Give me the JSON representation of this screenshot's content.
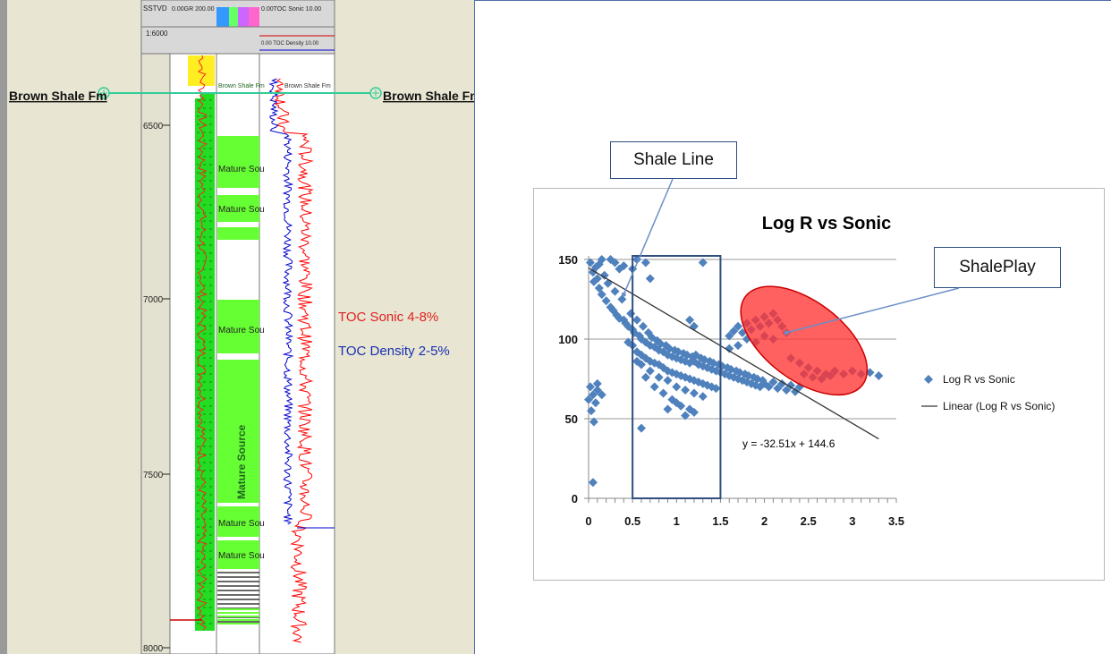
{
  "colors": {
    "log_panel_bg": "#e8e6d2",
    "lithology_green": "#22dd22",
    "source_green": "#66ff33",
    "shale_marker": "#33cc99",
    "scatter_blue": "#4f81bd",
    "sonic_red": "#ff0000",
    "density_blue": "#0000cc",
    "ellipse_red": "#ff3333",
    "frame_blue": "#4f6fa8"
  },
  "log_panel": {
    "header": {
      "depth_track": "SSTVD",
      "depth_scale": "1:6000",
      "gr_track": "0.00GR 200.00",
      "toc_sonic": "0.00TOC Sonic 10.00",
      "toc_density": "0.00 TOC Density 10.00"
    },
    "formation_top": "Brown Shale Fm",
    "depth_labels": [
      "6500",
      "7000",
      "7500",
      "8000"
    ],
    "source_label_short": "Mature Sou",
    "source_label_long": "Mature Source",
    "mini_labels": {
      "formation_track": "Brown Shale Fm",
      "toc_track": "Brown Shale Fm"
    },
    "legend": {
      "toc_sonic": "TOC Sonic 4-8%",
      "toc_density": "TOC Density 2-5%"
    }
  },
  "chart_data": {
    "type": "scatter",
    "title": "Log R vs Sonic",
    "xlabel": "",
    "ylabel": "",
    "xlim": [
      0,
      3.5
    ],
    "ylim": [
      0,
      150
    ],
    "x_ticks": [
      "0",
      "0.5",
      "1",
      "1.5",
      "2",
      "2.5",
      "3",
      "3.5"
    ],
    "y_ticks": [
      "0",
      "50",
      "100",
      "150"
    ],
    "grid": "horizontal",
    "legend_position": "right",
    "series": [
      {
        "name": "Log R vs Sonic",
        "type": "scatter",
        "color": "#4f81bd"
      },
      {
        "name": "Linear (Log R vs Sonic)",
        "type": "line",
        "color": "#000000"
      }
    ],
    "trendline": {
      "slope": -32.51,
      "intercept": 144.6,
      "x_range": [
        0,
        3.3
      ]
    },
    "equation_label": "y = -32.51x + 144.6",
    "points": [
      [
        0.02,
        148
      ],
      [
        0.05,
        142
      ],
      [
        0.06,
        136
      ],
      [
        0.08,
        145
      ],
      [
        0.1,
        138
      ],
      [
        0.12,
        132
      ],
      [
        0.12,
        147
      ],
      [
        0.15,
        128
      ],
      [
        0.18,
        140
      ],
      [
        0.2,
        124
      ],
      [
        0.22,
        135
      ],
      [
        0.25,
        120
      ],
      [
        0.28,
        118
      ],
      [
        0.3,
        130
      ],
      [
        0.32,
        115
      ],
      [
        0.35,
        113
      ],
      [
        0.38,
        125
      ],
      [
        0.4,
        112
      ],
      [
        0.42,
        110
      ],
      [
        0.45,
        108
      ],
      [
        0.48,
        116
      ],
      [
        0.5,
        106
      ],
      [
        0.52,
        104
      ],
      [
        0.55,
        112
      ],
      [
        0.58,
        102
      ],
      [
        0.6,
        100
      ],
      [
        0.62,
        108
      ],
      [
        0.65,
        98
      ],
      [
        0.68,
        104
      ],
      [
        0.7,
        96
      ],
      [
        0.72,
        101
      ],
      [
        0.75,
        95
      ],
      [
        0.78,
        99
      ],
      [
        0.8,
        93
      ],
      [
        0.82,
        97
      ],
      [
        0.85,
        92
      ],
      [
        0.88,
        96
      ],
      [
        0.9,
        90
      ],
      [
        0.92,
        94
      ],
      [
        0.95,
        89
      ],
      [
        0.98,
        93
      ],
      [
        1.0,
        88
      ],
      [
        1.02,
        92
      ],
      [
        1.05,
        87
      ],
      [
        1.08,
        91
      ],
      [
        1.1,
        86
      ],
      [
        1.12,
        90
      ],
      [
        1.15,
        85
      ],
      [
        1.18,
        89
      ],
      [
        1.2,
        86
      ],
      [
        1.22,
        90
      ],
      [
        1.25,
        84
      ],
      [
        1.28,
        88
      ],
      [
        1.3,
        83
      ],
      [
        1.32,
        87
      ],
      [
        1.35,
        82
      ],
      [
        1.38,
        86
      ],
      [
        1.4,
        81
      ],
      [
        1.42,
        85
      ],
      [
        1.45,
        80
      ],
      [
        1.48,
        84
      ],
      [
        1.5,
        79
      ],
      [
        1.52,
        83
      ],
      [
        1.55,
        78
      ],
      [
        1.58,
        82
      ],
      [
        1.6,
        77
      ],
      [
        1.62,
        81
      ],
      [
        1.65,
        76
      ],
      [
        1.68,
        80
      ],
      [
        1.7,
        75
      ],
      [
        1.72,
        79
      ],
      [
        1.75,
        74
      ],
      [
        1.78,
        78
      ],
      [
        1.8,
        73
      ],
      [
        1.82,
        77
      ],
      [
        1.85,
        72
      ],
      [
        1.88,
        76
      ],
      [
        1.9,
        71
      ],
      [
        1.92,
        75
      ],
      [
        1.95,
        70
      ],
      [
        1.98,
        74
      ],
      [
        2.0,
        72
      ],
      [
        2.05,
        70
      ],
      [
        2.1,
        73
      ],
      [
        2.15,
        69
      ],
      [
        2.2,
        72
      ],
      [
        2.25,
        68
      ],
      [
        2.3,
        71
      ],
      [
        2.35,
        67
      ],
      [
        2.4,
        70
      ],
      [
        0.5,
        96
      ],
      [
        0.55,
        92
      ],
      [
        0.6,
        90
      ],
      [
        0.65,
        88
      ],
      [
        0.7,
        86
      ],
      [
        0.75,
        85
      ],
      [
        0.8,
        84
      ],
      [
        0.85,
        82
      ],
      [
        0.9,
        80
      ],
      [
        0.95,
        79
      ],
      [
        1.0,
        78
      ],
      [
        1.05,
        77
      ],
      [
        1.1,
        76
      ],
      [
        1.15,
        75
      ],
      [
        1.2,
        74
      ],
      [
        1.25,
        73
      ],
      [
        1.3,
        72
      ],
      [
        1.35,
        71
      ],
      [
        1.4,
        70
      ],
      [
        1.45,
        69
      ],
      [
        0.6,
        84
      ],
      [
        0.7,
        80
      ],
      [
        0.8,
        76
      ],
      [
        0.9,
        74
      ],
      [
        1.0,
        70
      ],
      [
        1.1,
        68
      ],
      [
        1.2,
        66
      ],
      [
        1.3,
        64
      ],
      [
        0.75,
        70
      ],
      [
        0.85,
        66
      ],
      [
        0.95,
        62
      ],
      [
        1.05,
        58
      ],
      [
        1.15,
        56
      ],
      [
        1.2,
        54
      ],
      [
        1.0,
        60
      ],
      [
        1.1,
        52
      ],
      [
        0.9,
        56
      ],
      [
        0.65,
        76
      ],
      [
        0.55,
        86
      ],
      [
        0.45,
        98
      ],
      [
        1.6,
        102
      ],
      [
        1.65,
        105
      ],
      [
        1.7,
        108
      ],
      [
        1.75,
        104
      ],
      [
        1.8,
        110
      ],
      [
        1.85,
        106
      ],
      [
        1.9,
        112
      ],
      [
        1.95,
        108
      ],
      [
        2.0,
        114
      ],
      [
        2.05,
        110
      ],
      [
        2.1,
        116
      ],
      [
        2.15,
        112
      ],
      [
        2.2,
        108
      ],
      [
        2.25,
        104
      ],
      [
        1.7,
        96
      ],
      [
        1.8,
        100
      ],
      [
        1.9,
        98
      ],
      [
        2.0,
        102
      ],
      [
        2.1,
        100
      ],
      [
        1.6,
        94
      ],
      [
        2.3,
        88
      ],
      [
        2.4,
        85
      ],
      [
        2.5,
        82
      ],
      [
        2.6,
        80
      ],
      [
        2.7,
        78
      ],
      [
        2.8,
        80
      ],
      [
        2.9,
        78
      ],
      [
        3.0,
        80
      ],
      [
        3.1,
        78
      ],
      [
        3.2,
        79
      ],
      [
        3.3,
        77
      ],
      [
        2.45,
        78
      ],
      [
        2.55,
        76
      ],
      [
        2.65,
        75
      ],
      [
        2.75,
        77
      ],
      [
        0.02,
        70
      ],
      [
        0.05,
        65
      ],
      [
        0.08,
        60
      ],
      [
        0.1,
        72
      ],
      [
        0.03,
        55
      ],
      [
        0.06,
        48
      ],
      [
        0.1,
        68
      ],
      [
        0.0,
        62
      ],
      [
        0.05,
        10
      ],
      [
        0.15,
        65
      ],
      [
        0.3,
        148
      ],
      [
        0.4,
        146
      ],
      [
        0.55,
        150
      ],
      [
        0.65,
        148
      ],
      [
        0.5,
        144
      ],
      [
        1.3,
        148
      ],
      [
        0.7,
        138
      ],
      [
        1.15,
        112
      ],
      [
        1.2,
        108
      ],
      [
        0.6,
        44
      ],
      [
        0.25,
        150
      ],
      [
        0.35,
        144
      ],
      [
        0.15,
        150
      ]
    ]
  },
  "callouts": {
    "shale_line": "Shale Line",
    "shale_play": "ShalePlay"
  }
}
